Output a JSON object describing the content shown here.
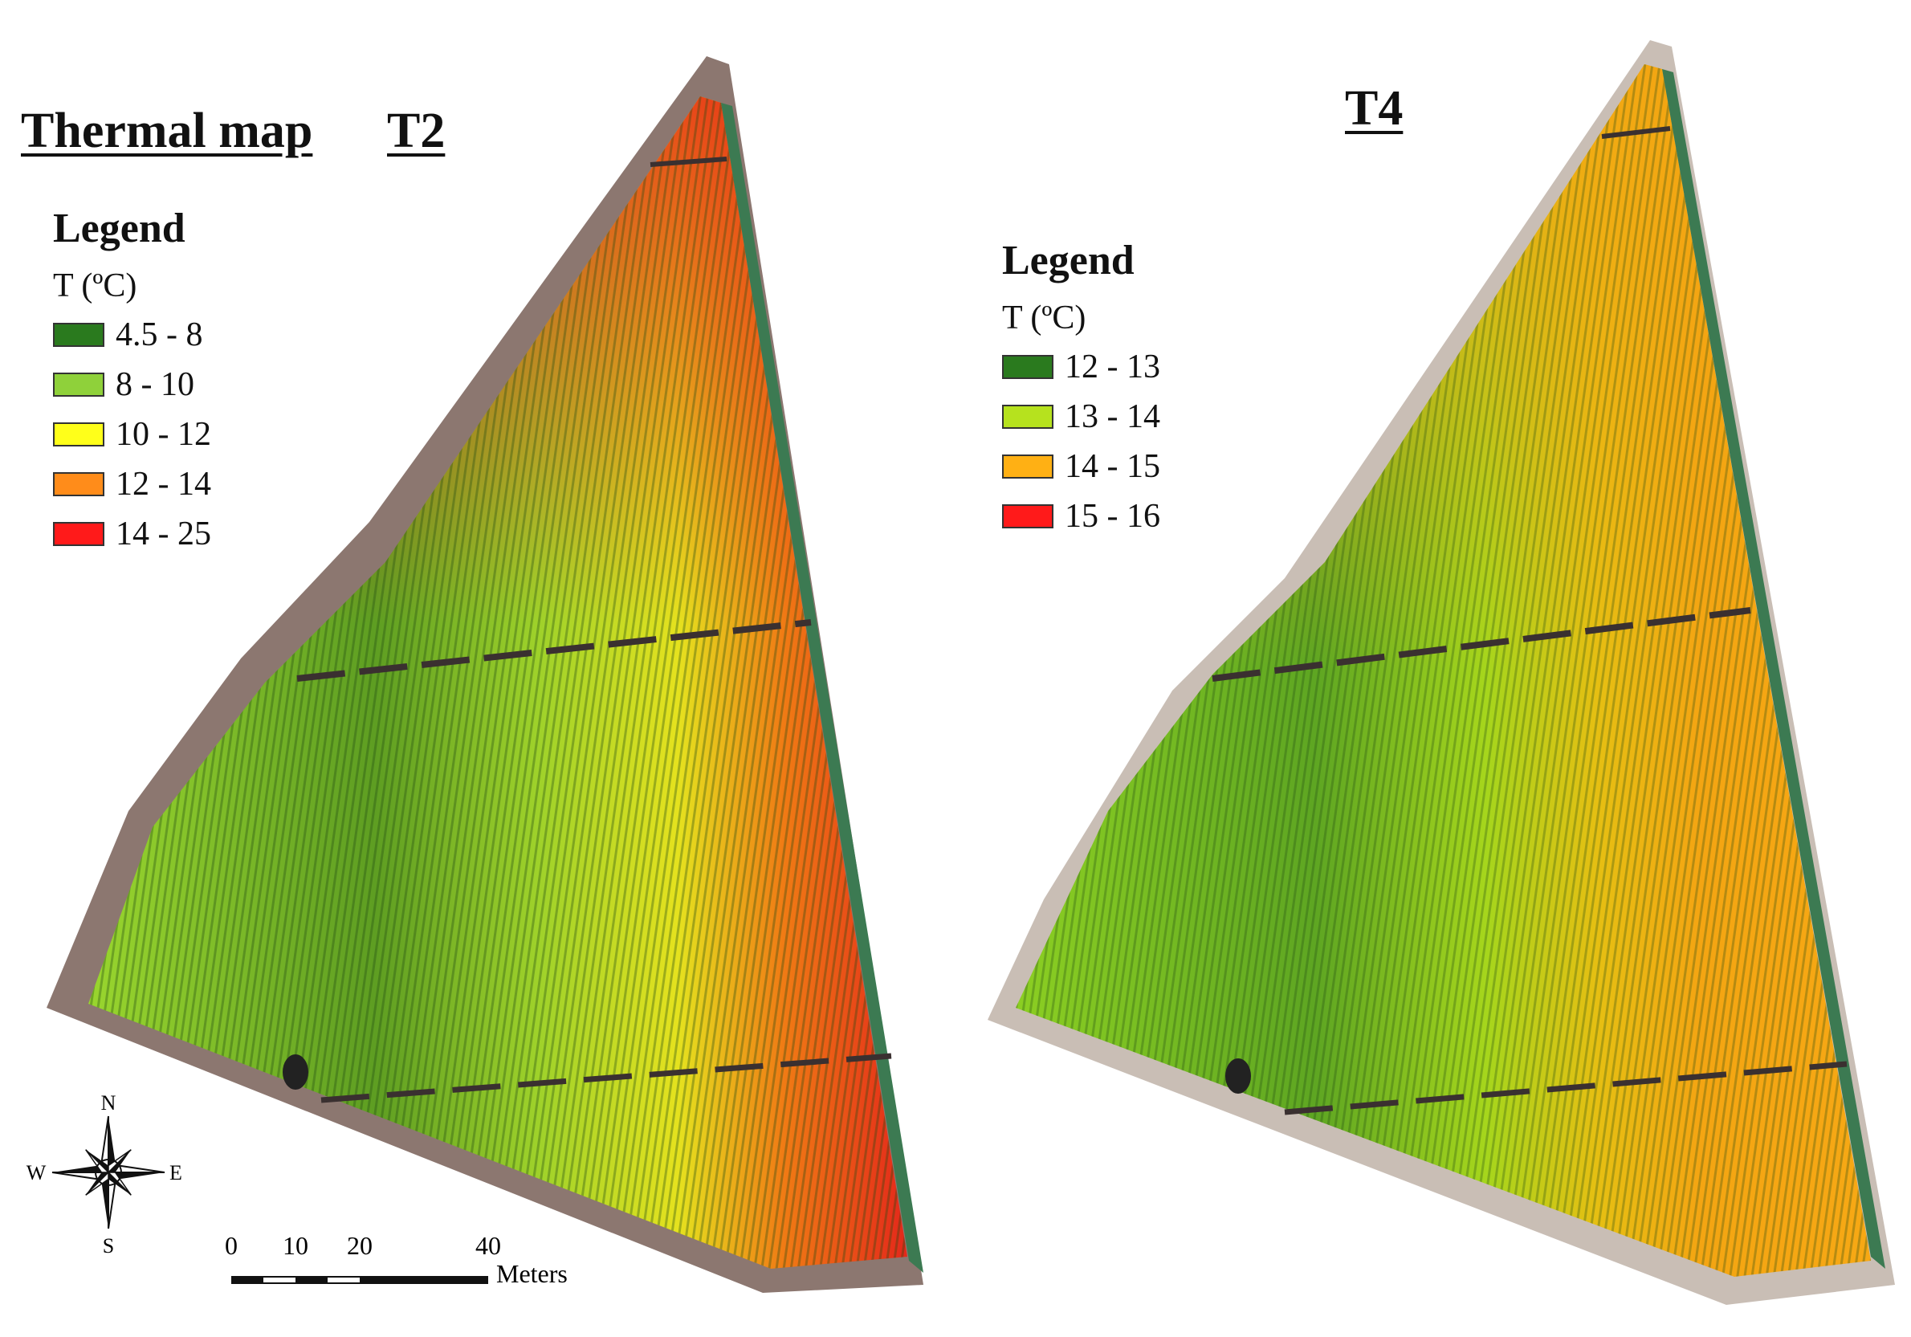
{
  "left_map": {
    "title": "Thermal map",
    "label": "T2",
    "legend_title": "Legend",
    "legend_unit": "T (ºC)",
    "legend": [
      {
        "label": "4.5 - 8",
        "color": "#2a7a1e"
      },
      {
        "label": "8 - 10",
        "color": "#8fd13a"
      },
      {
        "label": "10 - 12",
        "color": "#ffff1a"
      },
      {
        "label": "12 - 14",
        "color": "#ff8c1a"
      },
      {
        "label": "14 - 25",
        "color": "#ff1a1a"
      }
    ]
  },
  "right_map": {
    "label": "T4",
    "legend_title": "Legend",
    "legend_unit": "T (ºC)",
    "legend": [
      {
        "label": "12 - 13",
        "color": "#2a7a1e"
      },
      {
        "label": "13 - 14",
        "color": "#b6e21e"
      },
      {
        "label": "14 - 15",
        "color": "#ffb014"
      },
      {
        "label": "15 - 16",
        "color": "#ff1a1a"
      }
    ]
  },
  "north_arrow": {
    "n": "N",
    "s": "S",
    "e": "E",
    "w": "W"
  },
  "scale_bar": {
    "ticks": [
      "0",
      "10",
      "20",
      "40"
    ],
    "unit": "Meters"
  }
}
